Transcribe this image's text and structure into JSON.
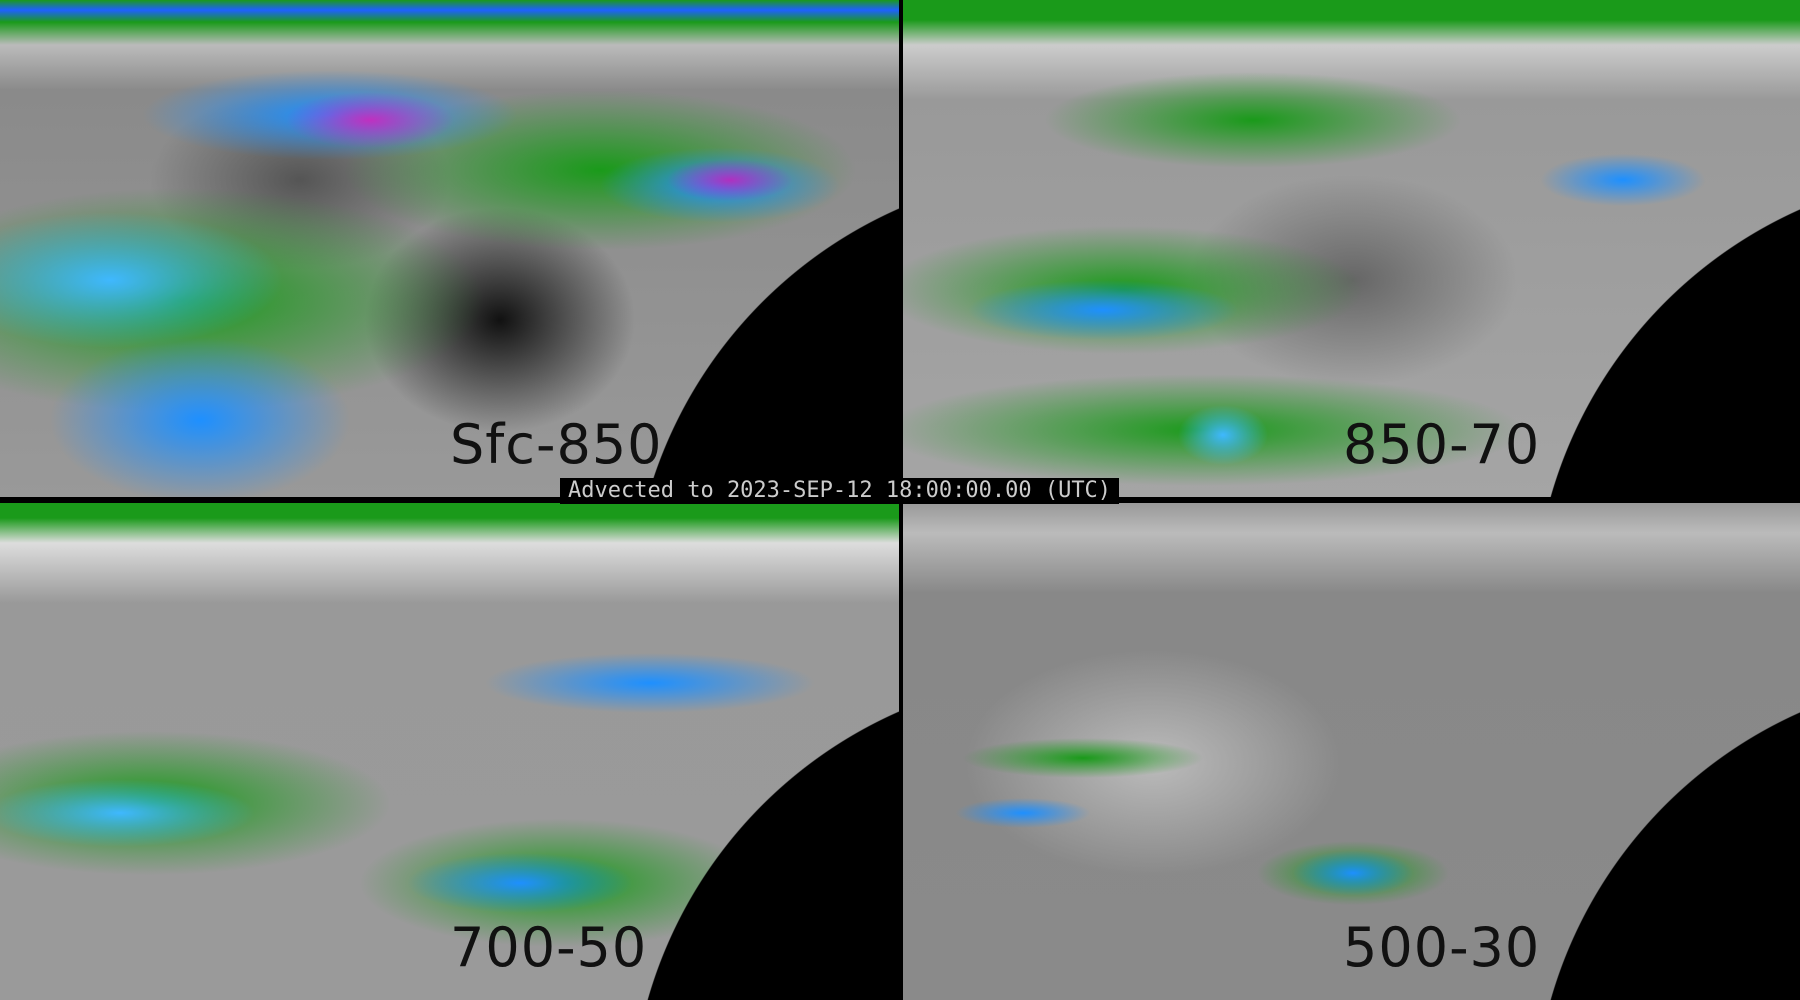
{
  "header": {
    "title": "Advected to 2023-SEP-12 18:00:00.00 (UTC)"
  },
  "panels": [
    {
      "label": "Sfc-850",
      "moisture_level": "high"
    },
    {
      "label": "850-70",
      "moisture_level": "moderate"
    },
    {
      "label": "700-50",
      "moisture_level": "moderate"
    },
    {
      "label": "500-30",
      "moisture_level": "low"
    }
  ],
  "colors": {
    "background_gray": "#8a8a8a",
    "green": "#1a9a1a",
    "blue": "#1e90ff",
    "cyan": "#3fe0ff",
    "magenta": "#c030c0",
    "space": "#000000"
  }
}
